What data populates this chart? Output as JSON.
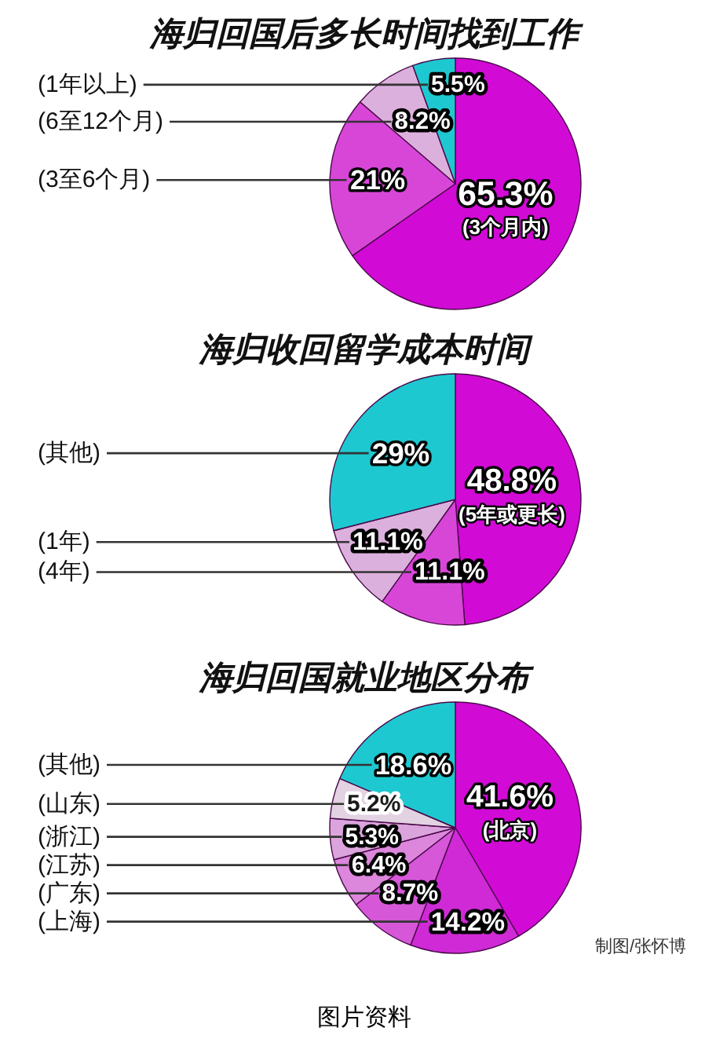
{
  "chart_data": [
    {
      "type": "pie",
      "title": "海归回国后多长时间找到工作",
      "categories": [
        "(3个月内)",
        "(3至6个月)",
        "(6至12个月)",
        "(1年以上)"
      ],
      "values": [
        65.3,
        21,
        8.2,
        5.5
      ],
      "colors": [
        "#d20ad6",
        "#d846d8",
        "#dcb0dc",
        "#1ec8d0"
      ],
      "value_labels": [
        "65.3%",
        "21%",
        "8.2%",
        "5.5%"
      ]
    },
    {
      "type": "pie",
      "title": "海归收回留学成本时间",
      "categories": [
        "(5年或更长)",
        "(4年)",
        "(1年)",
        "(其他)"
      ],
      "values": [
        48.8,
        11.1,
        11.1,
        29
      ],
      "colors": [
        "#d20ad6",
        "#d846d8",
        "#dcb0dc",
        "#1ec8d0"
      ],
      "value_labels": [
        "48.8%",
        "11.1%",
        "11.1%",
        "29%"
      ]
    },
    {
      "type": "pie",
      "title": "海归回国就业地区分布",
      "categories": [
        "(北京)",
        "(上海)",
        "(广东)",
        "(江苏)",
        "(浙江)",
        "(山东)",
        "(其他)"
      ],
      "values": [
        41.6,
        14.2,
        8.7,
        6.4,
        5.3,
        5.2,
        18.6
      ],
      "colors": [
        "#d20ad6",
        "#cf2ad6",
        "#d657d8",
        "#dc86dc",
        "#dba4dc",
        "#e2d2e2",
        "#1ec8d0"
      ],
      "value_labels": [
        "41.6%",
        "14.2%",
        "8.7%",
        "6.4%",
        "5.3%",
        "5.2%",
        "18.6%"
      ],
      "annotations": [
        "制图/张怀博",
        "图片资料"
      ]
    }
  ]
}
